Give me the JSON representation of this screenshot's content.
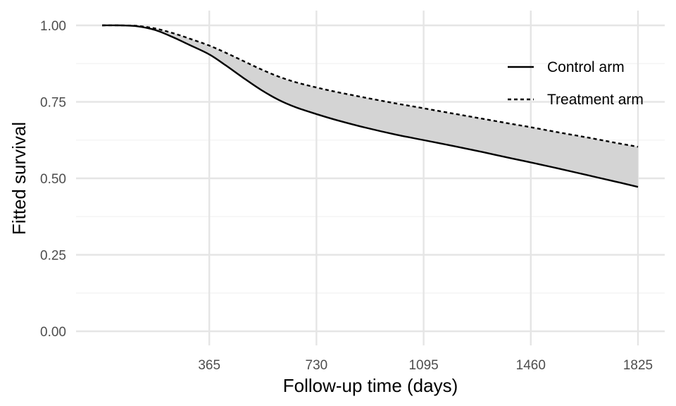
{
  "chart_data": {
    "type": "line",
    "title": "",
    "xlabel": "Follow-up time (days)",
    "ylabel": "Fitted survival",
    "xlim": [
      0,
      1825
    ],
    "ylim": [
      0,
      1
    ],
    "x_ticks": [
      365,
      730,
      1095,
      1460,
      1825
    ],
    "x_tick_labels": [
      "365",
      "730",
      "1095",
      "1460",
      "1825"
    ],
    "y_ticks": [
      0,
      0.25,
      0.5,
      0.75,
      1.0
    ],
    "y_tick_labels": [
      "0.00",
      "0.25",
      "0.50",
      "0.75",
      "1.00"
    ],
    "grid": true,
    "legend_position": "top-right",
    "shaded_region_between_series": true,
    "colors": {
      "line": "#000000",
      "fill": "#d4d4d4",
      "grid": "#e5e5e5"
    },
    "series": [
      {
        "name": "Control arm",
        "linestyle": "solid",
        "x": [
          0,
          60,
          120,
          180,
          240,
          300,
          365,
          420,
          480,
          540,
          600,
          660,
          730,
          800,
          900,
          1000,
          1095,
          1200,
          1300,
          1400,
          1460,
          1550,
          1650,
          1750,
          1825
        ],
        "y": [
          1.0,
          1.0,
          0.997,
          0.985,
          0.962,
          0.935,
          0.905,
          0.87,
          0.829,
          0.79,
          0.757,
          0.732,
          0.71,
          0.69,
          0.665,
          0.643,
          0.625,
          0.605,
          0.585,
          0.564,
          0.552,
          0.533,
          0.511,
          0.489,
          0.472
        ]
      },
      {
        "name": "Treatment arm",
        "linestyle": "dashed",
        "x": [
          0,
          60,
          120,
          180,
          240,
          300,
          365,
          420,
          480,
          540,
          600,
          660,
          730,
          800,
          900,
          1000,
          1095,
          1200,
          1300,
          1400,
          1460,
          1550,
          1650,
          1750,
          1825
        ],
        "y": [
          1.0,
          1.0,
          0.998,
          0.99,
          0.975,
          0.956,
          0.934,
          0.911,
          0.884,
          0.857,
          0.833,
          0.814,
          0.797,
          0.782,
          0.763,
          0.745,
          0.729,
          0.711,
          0.694,
          0.677,
          0.667,
          0.651,
          0.634,
          0.616,
          0.603
        ]
      }
    ]
  }
}
